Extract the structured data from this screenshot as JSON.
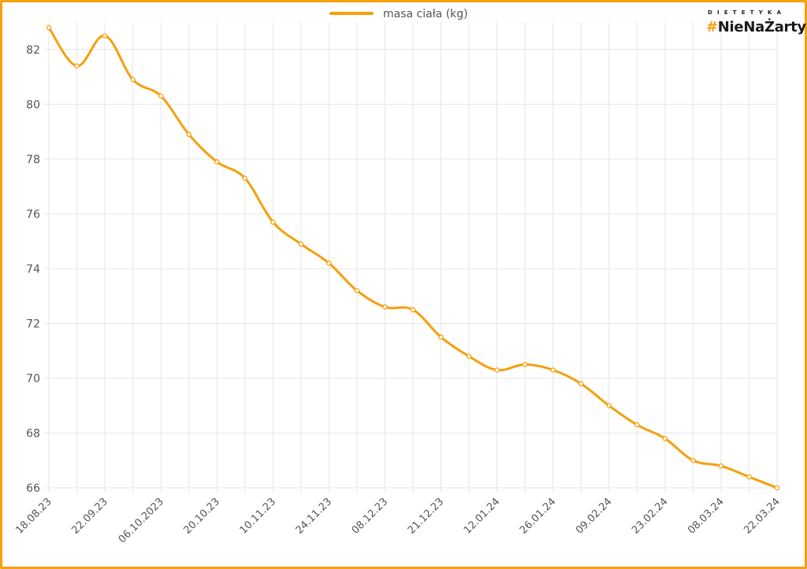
{
  "chart_data": {
    "type": "line",
    "title": "",
    "xlabel": "",
    "ylabel": "",
    "ylim": [
      66,
      83
    ],
    "yticks": [
      66,
      68,
      70,
      72,
      74,
      76,
      78,
      80,
      82
    ],
    "grid": true,
    "legend_position": "top-center",
    "color": "#f5a00c",
    "x_tick_labels": [
      "18.08.23",
      "22.09.23",
      "06.10.2023",
      "20.10.23",
      "10.11.23",
      "24.11.23",
      "08.12.23",
      "21.12.23",
      "12.01.24",
      "26.01.24",
      "09.02.24",
      "23.02.24",
      "08.03.24",
      "22.03.24"
    ],
    "series": [
      {
        "name": "masa ciała (kg)",
        "values": [
          82.8,
          81.4,
          82.5,
          80.9,
          80.3,
          78.9,
          77.9,
          77.3,
          75.7,
          74.9,
          74.2,
          73.2,
          72.6,
          72.5,
          71.5,
          70.8,
          70.3,
          70.5,
          70.3,
          69.8,
          69.0,
          68.3,
          67.8,
          67.0,
          66.8,
          66.4,
          66.0
        ]
      }
    ]
  },
  "logo": {
    "small_text": "DIETETYKA",
    "hash": "#",
    "main_text": "NieNaŻarty"
  }
}
